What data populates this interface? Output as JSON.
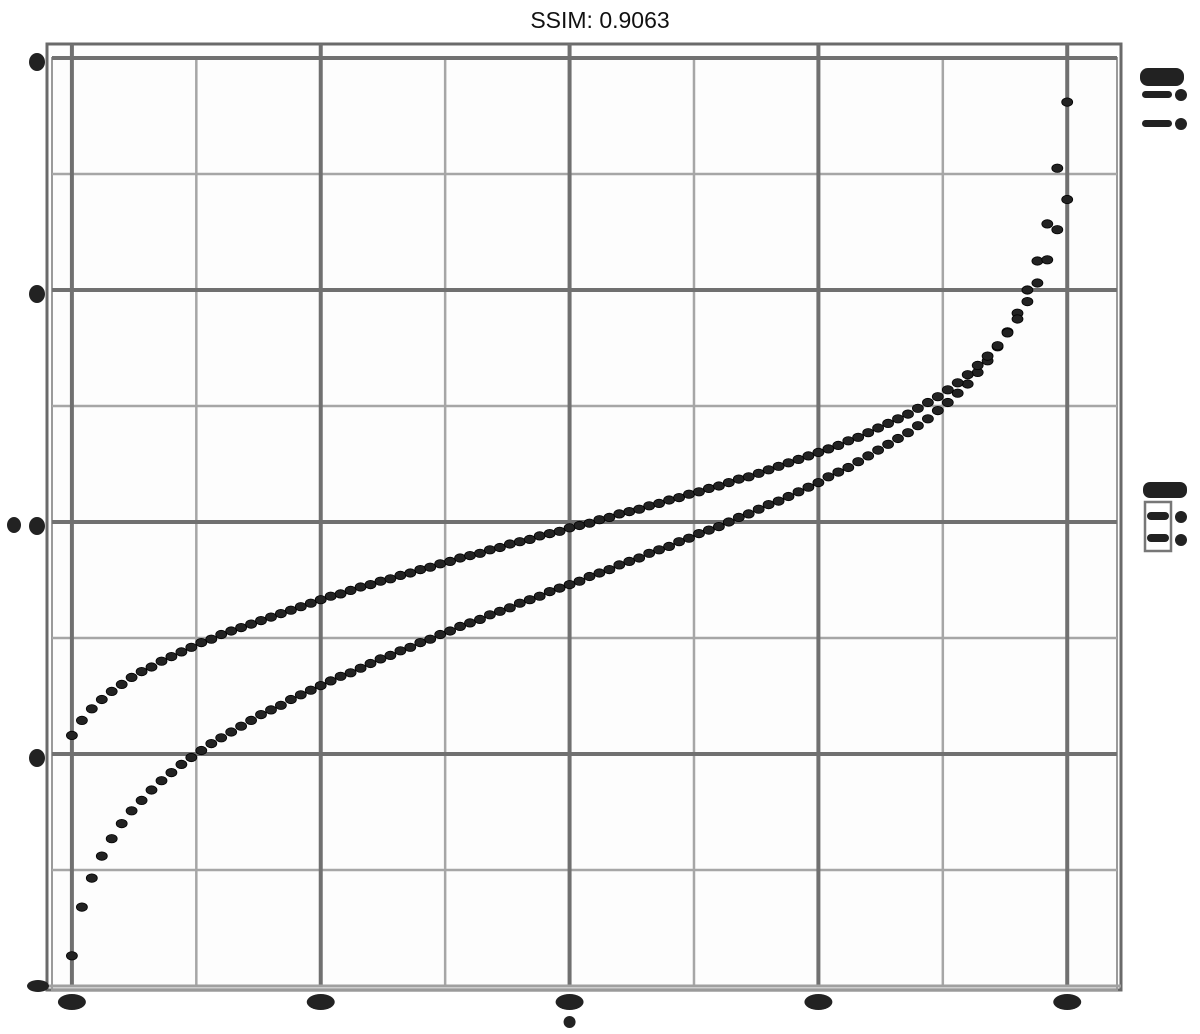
{
  "chart_data": {
    "type": "scatter",
    "title": "SSIM: 0.9063",
    "x": [
      0.0,
      0.01,
      0.02,
      0.03,
      0.04,
      0.05,
      0.06,
      0.07,
      0.08,
      0.09,
      0.1,
      0.11,
      0.12,
      0.13,
      0.14,
      0.15,
      0.16,
      0.17,
      0.18,
      0.19,
      0.2,
      0.21,
      0.22,
      0.23,
      0.24,
      0.25,
      0.26,
      0.27,
      0.28,
      0.29,
      0.3,
      0.31,
      0.32,
      0.33,
      0.34,
      0.35,
      0.36,
      0.37,
      0.38,
      0.39,
      0.4,
      0.41,
      0.42,
      0.43,
      0.44,
      0.45,
      0.46,
      0.47,
      0.48,
      0.49,
      0.5,
      0.51,
      0.52,
      0.53,
      0.54,
      0.55,
      0.56,
      0.57,
      0.58,
      0.59,
      0.6,
      0.61,
      0.62,
      0.63,
      0.64,
      0.65,
      0.66,
      0.67,
      0.68,
      0.69,
      0.7,
      0.71,
      0.72,
      0.73,
      0.74,
      0.75,
      0.76,
      0.77,
      0.78,
      0.79,
      0.8,
      0.81,
      0.82,
      0.83,
      0.84,
      0.85,
      0.86,
      0.87,
      0.88,
      0.89,
      0.9,
      0.91,
      0.92,
      0.93,
      0.94,
      0.95,
      0.96,
      0.97,
      0.98,
      0.99,
      1.0
    ],
    "series": [
      {
        "values": [
          -3.74,
          -3.32,
          -3.07,
          -2.88,
          -2.73,
          -2.6,
          -2.49,
          -2.4,
          -2.31,
          -2.23,
          -2.16,
          -2.09,
          -2.03,
          -1.97,
          -1.91,
          -1.86,
          -1.81,
          -1.76,
          -1.71,
          -1.66,
          -1.62,
          -1.58,
          -1.53,
          -1.49,
          -1.45,
          -1.41,
          -1.37,
          -1.33,
          -1.3,
          -1.26,
          -1.22,
          -1.18,
          -1.15,
          -1.11,
          -1.08,
          -1.04,
          -1.01,
          -0.97,
          -0.94,
          -0.9,
          -0.87,
          -0.84,
          -0.8,
          -0.77,
          -0.74,
          -0.7,
          -0.67,
          -0.64,
          -0.6,
          -0.57,
          -0.54,
          -0.51,
          -0.47,
          -0.44,
          -0.41,
          -0.37,
          -0.34,
          -0.31,
          -0.27,
          -0.24,
          -0.21,
          -0.17,
          -0.14,
          -0.1,
          -0.07,
          -0.04,
          0.0,
          0.04,
          0.07,
          0.11,
          0.15,
          0.18,
          0.22,
          0.26,
          0.3,
          0.34,
          0.39,
          0.43,
          0.47,
          0.52,
          0.57,
          0.62,
          0.67,
          0.72,
          0.77,
          0.83,
          0.89,
          0.96,
          1.03,
          1.11,
          1.19,
          1.29,
          1.39,
          1.51,
          1.64,
          1.8,
          2.0,
          2.25,
          2.57,
          3.05,
          3.62
        ]
      },
      {
        "values": [
          -1.84,
          -1.71,
          -1.61,
          -1.53,
          -1.46,
          -1.4,
          -1.34,
          -1.29,
          -1.25,
          -1.2,
          -1.16,
          -1.12,
          -1.08,
          -1.04,
          -1.01,
          -0.97,
          -0.94,
          -0.91,
          -0.88,
          -0.85,
          -0.82,
          -0.79,
          -0.76,
          -0.73,
          -0.7,
          -0.67,
          -0.64,
          -0.62,
          -0.59,
          -0.56,
          -0.54,
          -0.51,
          -0.49,
          -0.46,
          -0.44,
          -0.41,
          -0.39,
          -0.36,
          -0.34,
          -0.31,
          -0.29,
          -0.27,
          -0.24,
          -0.22,
          -0.19,
          -0.17,
          -0.15,
          -0.12,
          -0.1,
          -0.08,
          -0.05,
          -0.03,
          -0.01,
          0.02,
          0.04,
          0.07,
          0.09,
          0.11,
          0.14,
          0.16,
          0.19,
          0.21,
          0.24,
          0.26,
          0.29,
          0.31,
          0.34,
          0.37,
          0.39,
          0.42,
          0.45,
          0.48,
          0.51,
          0.54,
          0.57,
          0.6,
          0.63,
          0.66,
          0.7,
          0.73,
          0.77,
          0.81,
          0.85,
          0.89,
          0.93,
          0.98,
          1.03,
          1.08,
          1.14,
          1.2,
          1.27,
          1.35,
          1.43,
          1.52,
          1.63,
          1.75,
          1.9,
          2.06,
          2.26,
          2.52,
          2.78
        ]
      }
    ],
    "xlim": [
      -0.02,
      1.05
    ],
    "ylim": [
      -4.0,
      4.0
    ],
    "x_major_ticks": [
      0,
      0.25,
      0.5,
      0.75,
      1.0
    ],
    "x_minor_ticks": [
      0.125,
      0.375,
      0.625,
      0.875
    ],
    "y_major_ticks": [
      -2,
      0,
      2,
      4
    ],
    "y_minor_ticks": [
      -3,
      -1,
      1,
      3
    ],
    "grid": true,
    "marker_color": "#222222",
    "grid_major_color": "#707070",
    "grid_minor_color": "#a6a6a6"
  }
}
